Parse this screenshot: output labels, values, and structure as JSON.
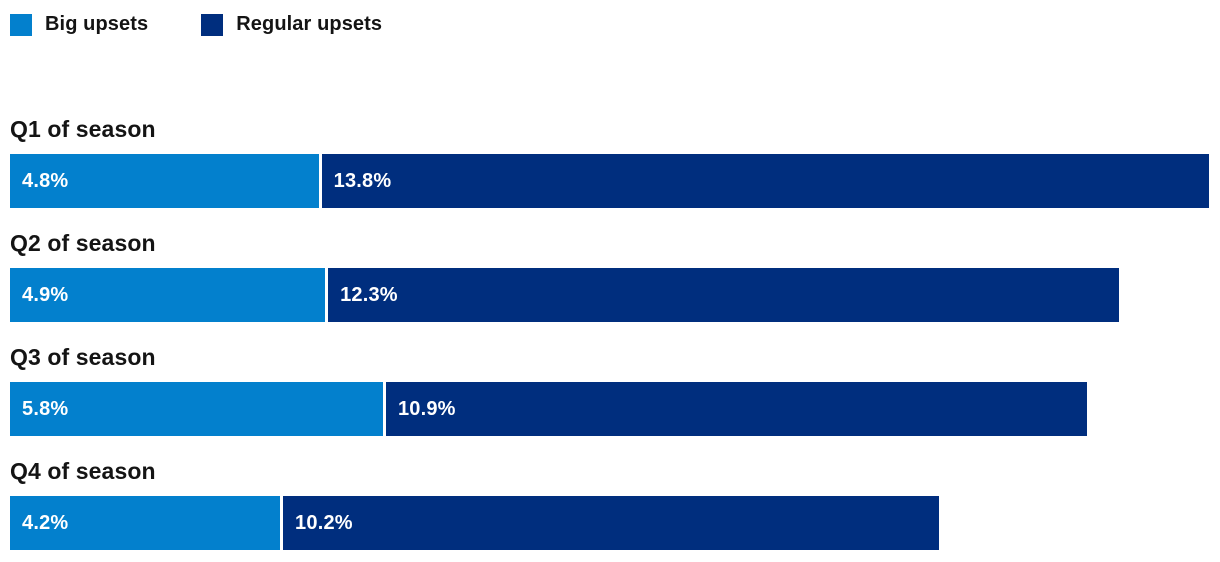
{
  "colors": {
    "big_upsets": "#0380CD",
    "regular_upsets": "#002E7E",
    "text": "#141414",
    "bar_label": "#ffffff",
    "background": "#ffffff"
  },
  "legend": {
    "items": [
      {
        "label": "Big upsets",
        "color": "#0380CD"
      },
      {
        "label": "Regular upsets",
        "color": "#002E7E"
      }
    ]
  },
  "rows": [
    {
      "label": "Q1 of season",
      "big_display": "4.8%",
      "regular_display": "13.8%"
    },
    {
      "label": "Q2 of season",
      "big_display": "4.9%",
      "regular_display": "12.3%"
    },
    {
      "label": "Q3 of season",
      "big_display": "5.8%",
      "regular_display": "10.9%"
    },
    {
      "label": "Q4 of season",
      "big_display": "4.2%",
      "regular_display": "10.2%"
    }
  ],
  "chart_data": {
    "type": "bar",
    "orientation": "horizontal",
    "stacked": true,
    "categories": [
      "Q1 of season",
      "Q2 of season",
      "Q3 of season",
      "Q4 of season"
    ],
    "series": [
      {
        "name": "Big upsets",
        "values": [
          4.8,
          4.9,
          5.8,
          4.2
        ],
        "color": "#0380CD"
      },
      {
        "name": "Regular upsets",
        "values": [
          13.8,
          12.3,
          10.9,
          10.2
        ],
        "color": "#002E7E"
      }
    ],
    "value_unit": "%",
    "data_labels": "inside-start",
    "title": "",
    "xlabel": "",
    "ylabel": "",
    "axes_visible": false,
    "grid": false,
    "legend_position": "top-left"
  }
}
